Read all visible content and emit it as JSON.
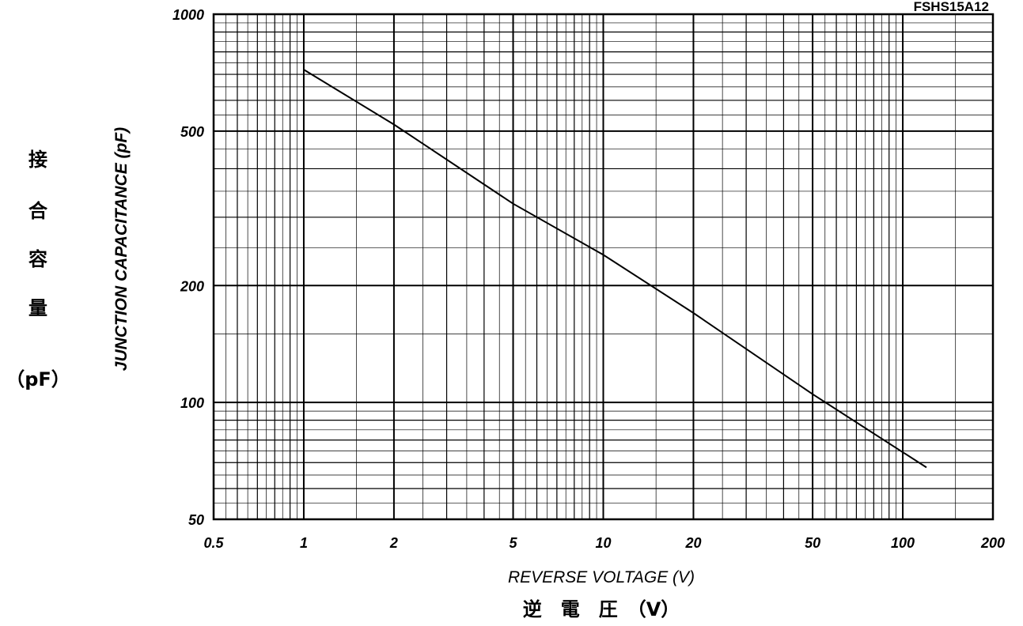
{
  "chart_data": {
    "type": "line",
    "scale": {
      "x": "log",
      "y": "log"
    },
    "grid": true,
    "model_label": "FSHS15A12",
    "xlabel": "REVERSE VOLTAGE (V)",
    "xlabel_jp": "逆　電　圧　（V）",
    "ylabel": "JUNCTION CAPACITANCE (pF)",
    "ylabel_jp_chars": [
      "接",
      "合",
      "容",
      "量"
    ],
    "ylabel_jp_unit": "（pF）",
    "xlim": [
      0.5,
      200
    ],
    "ylim": [
      50,
      1000
    ],
    "x_ticks": [
      {
        "value": 0.5,
        "label": "0.5"
      },
      {
        "value": 1,
        "label": "1"
      },
      {
        "value": 2,
        "label": "2"
      },
      {
        "value": 5,
        "label": "5"
      },
      {
        "value": 10,
        "label": "10"
      },
      {
        "value": 20,
        "label": "20"
      },
      {
        "value": 50,
        "label": "50"
      },
      {
        "value": 100,
        "label": "100"
      },
      {
        "value": 200,
        "label": "200"
      }
    ],
    "y_ticks": [
      {
        "value": 50,
        "label": "50"
      },
      {
        "value": 100,
        "label": "100"
      },
      {
        "value": 200,
        "label": "200"
      },
      {
        "value": 500,
        "label": "500"
      },
      {
        "value": 1000,
        "label": "1000"
      }
    ],
    "series": [
      {
        "x": [
          1,
          2,
          5,
          10,
          20,
          50,
          120
        ],
        "y": [
          720,
          520,
          325,
          240,
          170,
          105,
          68
        ]
      }
    ]
  }
}
